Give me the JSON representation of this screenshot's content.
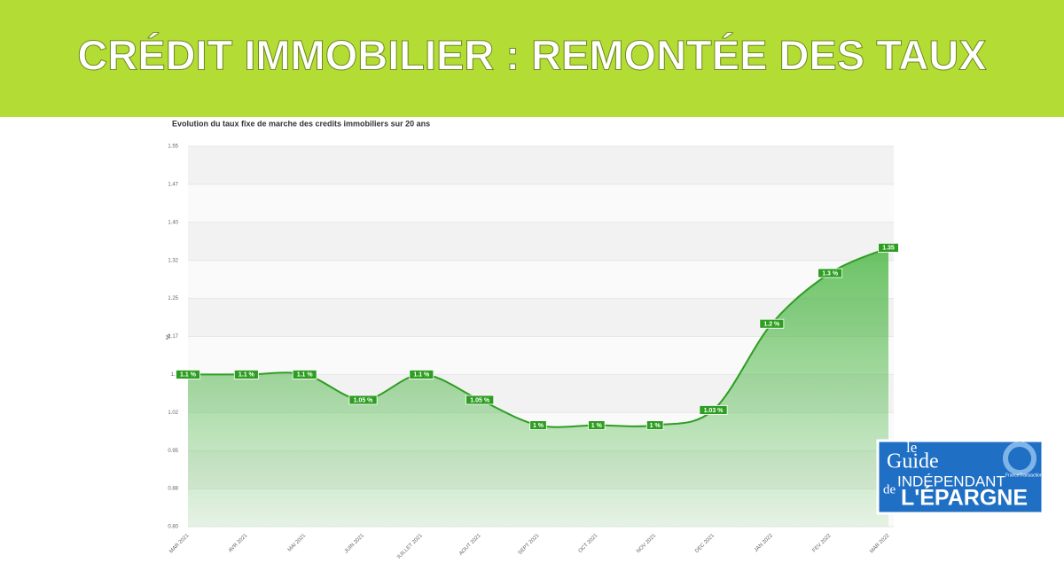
{
  "header": {
    "title": "CRÉDIT IMMOBILIER : REMONTÉE DES TAUX"
  },
  "chart_data": {
    "type": "area",
    "title": "Evolution du taux fixe de marche des credits immobiliers sur 20 ans",
    "y_label": "%",
    "categories": [
      "MAR 2021",
      "AVR 2021",
      "MAI 2021",
      "JUIN 2021",
      "JUILLET 2021",
      "AOUT 2021",
      "SEPT 2021",
      "OCT 2021",
      "NOV 2021",
      "DEC 2021",
      "JAN 2022",
      "FEV 2022",
      "MAR 2022"
    ],
    "values": [
      1.1,
      1.1,
      1.1,
      1.05,
      1.1,
      1.05,
      1,
      1,
      1,
      1.03,
      1.2,
      1.3,
      1.35
    ],
    "value_labels": [
      "1.1 %",
      "1.1 %",
      "1.1 %",
      "1.05 %",
      "1.1 %",
      "1.05 %",
      "1 %",
      "1 %",
      "1 %",
      "1.03 %",
      "1.2 %",
      "1.3 %",
      "1.35"
    ],
    "color": "#2e9e22",
    "ylim": [
      0.8,
      1.55
    ],
    "yticks": [
      {
        "value": 0.8,
        "label": "0.80"
      },
      {
        "value": 0.875,
        "label": "0.88"
      },
      0.95,
      {
        "value": 1.025,
        "label": "1.02"
      },
      1.1,
      {
        "value": 1.175,
        "label": "1.17"
      },
      1.25,
      {
        "value": 1.325,
        "label": "1.32"
      },
      {
        "value": 1.4,
        "label": "1.40"
      },
      {
        "value": 1.475,
        "label": "1.47"
      },
      1.55
    ],
    "grid": true
  },
  "logo": {
    "le": "le",
    "guide": "Guide",
    "independant": "INDÉPENDANT",
    "de": "de",
    "epargne": "L'ÉPARGNE",
    "site": "FranceTransactions.com"
  }
}
